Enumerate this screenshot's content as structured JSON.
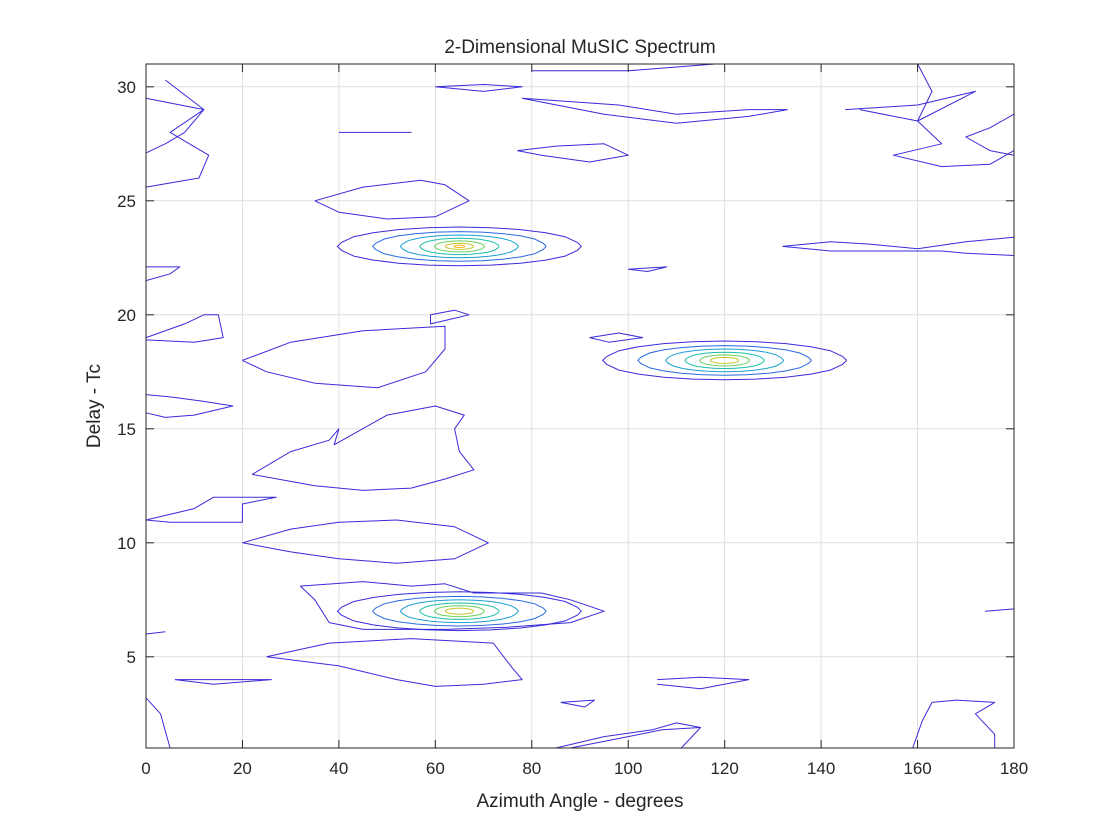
{
  "chart_data": {
    "type": "contour",
    "title": "2-Dimensional MuSIC Spectrum",
    "xlabel": "Azimuth Angle - degrees",
    "ylabel": "Delay - Tc",
    "xlim": [
      0,
      180
    ],
    "ylim": [
      1,
      31
    ],
    "xticks": [
      0,
      20,
      40,
      60,
      80,
      100,
      120,
      140,
      160,
      180
    ],
    "yticks": [
      5,
      10,
      15,
      20,
      25,
      30
    ],
    "grid": true,
    "colormap": [
      "#3a2bd9",
      "#2a6ae0",
      "#1b9fd0",
      "#1cbfa8",
      "#6bcf5f",
      "#c7c62e",
      "#f0b92a"
    ],
    "peaks": [
      {
        "azimuth": 65,
        "delay": 23,
        "levels": 7
      },
      {
        "azimuth": 120,
        "delay": 18,
        "levels": 6
      },
      {
        "azimuth": 65,
        "delay": 7,
        "levels": 6
      }
    ],
    "contours": [
      {
        "level": 0,
        "points": [
          [
            0,
            29.5
          ],
          [
            12,
            29
          ],
          [
            8,
            28
          ],
          [
            4,
            27.5
          ],
          [
            0,
            27.1
          ]
        ]
      },
      {
        "level": 0,
        "points": [
          [
            4,
            30.3
          ],
          [
            12,
            29
          ],
          [
            5,
            28
          ],
          [
            13,
            27
          ],
          [
            11,
            26
          ],
          [
            0,
            25.6
          ]
        ]
      },
      {
        "level": 0,
        "points": [
          [
            40,
            28
          ],
          [
            48,
            28
          ],
          [
            55,
            28
          ],
          [
            40,
            28
          ]
        ]
      },
      {
        "level": 0,
        "points": [
          [
            60,
            30
          ],
          [
            70,
            30.1
          ],
          [
            78,
            30
          ],
          [
            70,
            29.8
          ],
          [
            60,
            30
          ]
        ]
      },
      {
        "level": 0,
        "points": [
          [
            80,
            30.7
          ],
          [
            100,
            30.7
          ],
          [
            118,
            31
          ]
        ]
      },
      {
        "level": 0,
        "points": [
          [
            78,
            29.5
          ],
          [
            98,
            29.2
          ],
          [
            110,
            28.8
          ],
          [
            125,
            29
          ],
          [
            133,
            29
          ],
          [
            125,
            28.7
          ],
          [
            110,
            28.4
          ],
          [
            95,
            28.8
          ],
          [
            78,
            29.5
          ]
        ]
      },
      {
        "level": 0,
        "points": [
          [
            77,
            27.2
          ],
          [
            85,
            27.4
          ],
          [
            95,
            27.5
          ],
          [
            100,
            27
          ],
          [
            92,
            26.7
          ],
          [
            82,
            27
          ],
          [
            77,
            27.2
          ]
        ]
      },
      {
        "level": 0,
        "points": [
          [
            145,
            29
          ],
          [
            160,
            29.2
          ],
          [
            172,
            29.8
          ],
          [
            160,
            28.5
          ],
          [
            148,
            29
          ]
        ]
      },
      {
        "level": 0,
        "points": [
          [
            160,
            31
          ],
          [
            163,
            29.8
          ],
          [
            160,
            28.5
          ],
          [
            165,
            27.5
          ],
          [
            155,
            27
          ],
          [
            165,
            26.5
          ],
          [
            175,
            26.6
          ],
          [
            180,
            27.2
          ]
        ]
      },
      {
        "level": 0,
        "points": [
          [
            180,
            28.8
          ],
          [
            175,
            28.2
          ],
          [
            170,
            27.8
          ],
          [
            175,
            27.2
          ],
          [
            180,
            27
          ]
        ]
      },
      {
        "level": 0,
        "points": [
          [
            35,
            25
          ],
          [
            45,
            25.6
          ],
          [
            57,
            25.9
          ],
          [
            62,
            25.7
          ],
          [
            67,
            25
          ],
          [
            60,
            24.3
          ],
          [
            50,
            24.2
          ],
          [
            40,
            24.5
          ],
          [
            35,
            25
          ]
        ]
      },
      {
        "level": 0,
        "points": [
          [
            0,
            22.1
          ],
          [
            7,
            22.1
          ],
          [
            5,
            21.8
          ],
          [
            0,
            21.5
          ]
        ]
      },
      {
        "level": 0,
        "points": [
          [
            100,
            22
          ],
          [
            108,
            22.1
          ],
          [
            104,
            21.9
          ],
          [
            100,
            22
          ]
        ]
      },
      {
        "level": 0,
        "points": [
          [
            132,
            23
          ],
          [
            142,
            23.2
          ],
          [
            150,
            23.1
          ],
          [
            160,
            22.9
          ],
          [
            170,
            23.2
          ],
          [
            180,
            23.4
          ]
        ]
      },
      {
        "level": 0,
        "points": [
          [
            132,
            23
          ],
          [
            142,
            22.8
          ],
          [
            155,
            22.8
          ],
          [
            165,
            22.8
          ],
          [
            170,
            22.7
          ],
          [
            180,
            22.6
          ]
        ]
      },
      {
        "level": 0,
        "points": [
          [
            0,
            19
          ],
          [
            8,
            19.6
          ],
          [
            12,
            20
          ],
          [
            15,
            20
          ],
          [
            16,
            19
          ],
          [
            10,
            18.8
          ],
          [
            0,
            18.9
          ]
        ]
      },
      {
        "level": 0,
        "points": [
          [
            59,
            20
          ],
          [
            64,
            20.2
          ],
          [
            67,
            20
          ],
          [
            63,
            19.8
          ],
          [
            59,
            19.6
          ],
          [
            59,
            20
          ]
        ]
      },
      {
        "level": 0,
        "points": [
          [
            92,
            19
          ],
          [
            98,
            19.2
          ],
          [
            103,
            19
          ],
          [
            96,
            18.8
          ],
          [
            92,
            19
          ]
        ]
      },
      {
        "level": 0,
        "points": [
          [
            20,
            18
          ],
          [
            30,
            18.8
          ],
          [
            45,
            19.3
          ],
          [
            62,
            19.5
          ],
          [
            62,
            18.5
          ],
          [
            58,
            17.5
          ],
          [
            48,
            16.8
          ],
          [
            35,
            17
          ],
          [
            25,
            17.5
          ],
          [
            20,
            18
          ]
        ]
      },
      {
        "level": 0,
        "points": [
          [
            0,
            16.5
          ],
          [
            5,
            16.4
          ],
          [
            12,
            16.2
          ],
          [
            18,
            16
          ],
          [
            10,
            15.6
          ],
          [
            4,
            15.5
          ],
          [
            0,
            15.7
          ]
        ]
      },
      {
        "level": 0,
        "points": [
          [
            22,
            13
          ],
          [
            30,
            14
          ],
          [
            38,
            14.5
          ],
          [
            40,
            15
          ],
          [
            39,
            14.3
          ],
          [
            50,
            15.6
          ],
          [
            60,
            16
          ],
          [
            66,
            15.6
          ],
          [
            64,
            15
          ],
          [
            65,
            14
          ],
          [
            68,
            13.2
          ],
          [
            62,
            12.8
          ],
          [
            55,
            12.4
          ],
          [
            45,
            12.3
          ],
          [
            35,
            12.5
          ],
          [
            22,
            13
          ]
        ]
      },
      {
        "level": 0,
        "points": [
          [
            0,
            11
          ],
          [
            10,
            11.5
          ],
          [
            14,
            12
          ],
          [
            27,
            12
          ],
          [
            20,
            11.7
          ],
          [
            20,
            10.9
          ],
          [
            15,
            10.9
          ],
          [
            5,
            10.9
          ],
          [
            0,
            11
          ]
        ]
      },
      {
        "level": 0,
        "points": [
          [
            20,
            10
          ],
          [
            30,
            10.6
          ],
          [
            40,
            10.9
          ],
          [
            52,
            11
          ],
          [
            64,
            10.7
          ],
          [
            71,
            10
          ],
          [
            64,
            9.3
          ],
          [
            52,
            9.1
          ],
          [
            40,
            9.3
          ],
          [
            30,
            9.6
          ],
          [
            20,
            10
          ]
        ]
      },
      {
        "level": 0,
        "points": [
          [
            32,
            8.1
          ],
          [
            45,
            8.3
          ],
          [
            55,
            8.1
          ],
          [
            62,
            8.2
          ],
          [
            68,
            7.8
          ],
          [
            82,
            7.8
          ],
          [
            88,
            7.5
          ],
          [
            95,
            7
          ],
          [
            88,
            6.5
          ],
          [
            75,
            6.3
          ],
          [
            62,
            6.2
          ],
          [
            45,
            6.2
          ],
          [
            38,
            6.5
          ],
          [
            35,
            7.5
          ],
          [
            32,
            8.1
          ]
        ]
      },
      {
        "level": 0,
        "points": [
          [
            0,
            6
          ],
          [
            4,
            6.1
          ]
        ]
      },
      {
        "level": 0,
        "points": [
          [
            174,
            7
          ],
          [
            180,
            7.1
          ]
        ]
      },
      {
        "level": 0,
        "points": [
          [
            25,
            5
          ],
          [
            38,
            5.6
          ],
          [
            55,
            5.8
          ],
          [
            72,
            5.6
          ],
          [
            76,
            4.5
          ],
          [
            78,
            4
          ],
          [
            70,
            3.8
          ],
          [
            60,
            3.7
          ],
          [
            52,
            4
          ],
          [
            40,
            4.6
          ],
          [
            25,
            5
          ]
        ]
      },
      {
        "level": 0,
        "points": [
          [
            6,
            4
          ],
          [
            14,
            4
          ],
          [
            26,
            4
          ],
          [
            14,
            3.8
          ],
          [
            6,
            4
          ]
        ]
      },
      {
        "level": 0,
        "points": [
          [
            86,
            3
          ],
          [
            93,
            3.1
          ],
          [
            91,
            2.8
          ],
          [
            86,
            3
          ]
        ]
      },
      {
        "level": 0,
        "points": [
          [
            106,
            4
          ],
          [
            115,
            4.1
          ],
          [
            125,
            4
          ],
          [
            115,
            3.6
          ],
          [
            106,
            3.8
          ]
        ]
      },
      {
        "level": 0,
        "points": [
          [
            0,
            3.2
          ],
          [
            3,
            2.5
          ],
          [
            5,
            1
          ]
        ]
      },
      {
        "level": 0,
        "points": [
          [
            85,
            1
          ],
          [
            95,
            1.5
          ],
          [
            105,
            1.8
          ],
          [
            110,
            2.1
          ],
          [
            115,
            1.9
          ],
          [
            107,
            1.8
          ],
          [
            100,
            1.5
          ],
          [
            88,
            1
          ]
        ]
      },
      {
        "level": 0,
        "points": [
          [
            111,
            1
          ],
          [
            115,
            1.9
          ]
        ]
      },
      {
        "level": 0,
        "points": [
          [
            159,
            1
          ],
          [
            161,
            2.2
          ],
          [
            163,
            3
          ],
          [
            168,
            3.1
          ],
          [
            176,
            3.0
          ],
          [
            172,
            2.5
          ],
          [
            176,
            1.6
          ],
          [
            176,
            1
          ]
        ]
      }
    ]
  }
}
